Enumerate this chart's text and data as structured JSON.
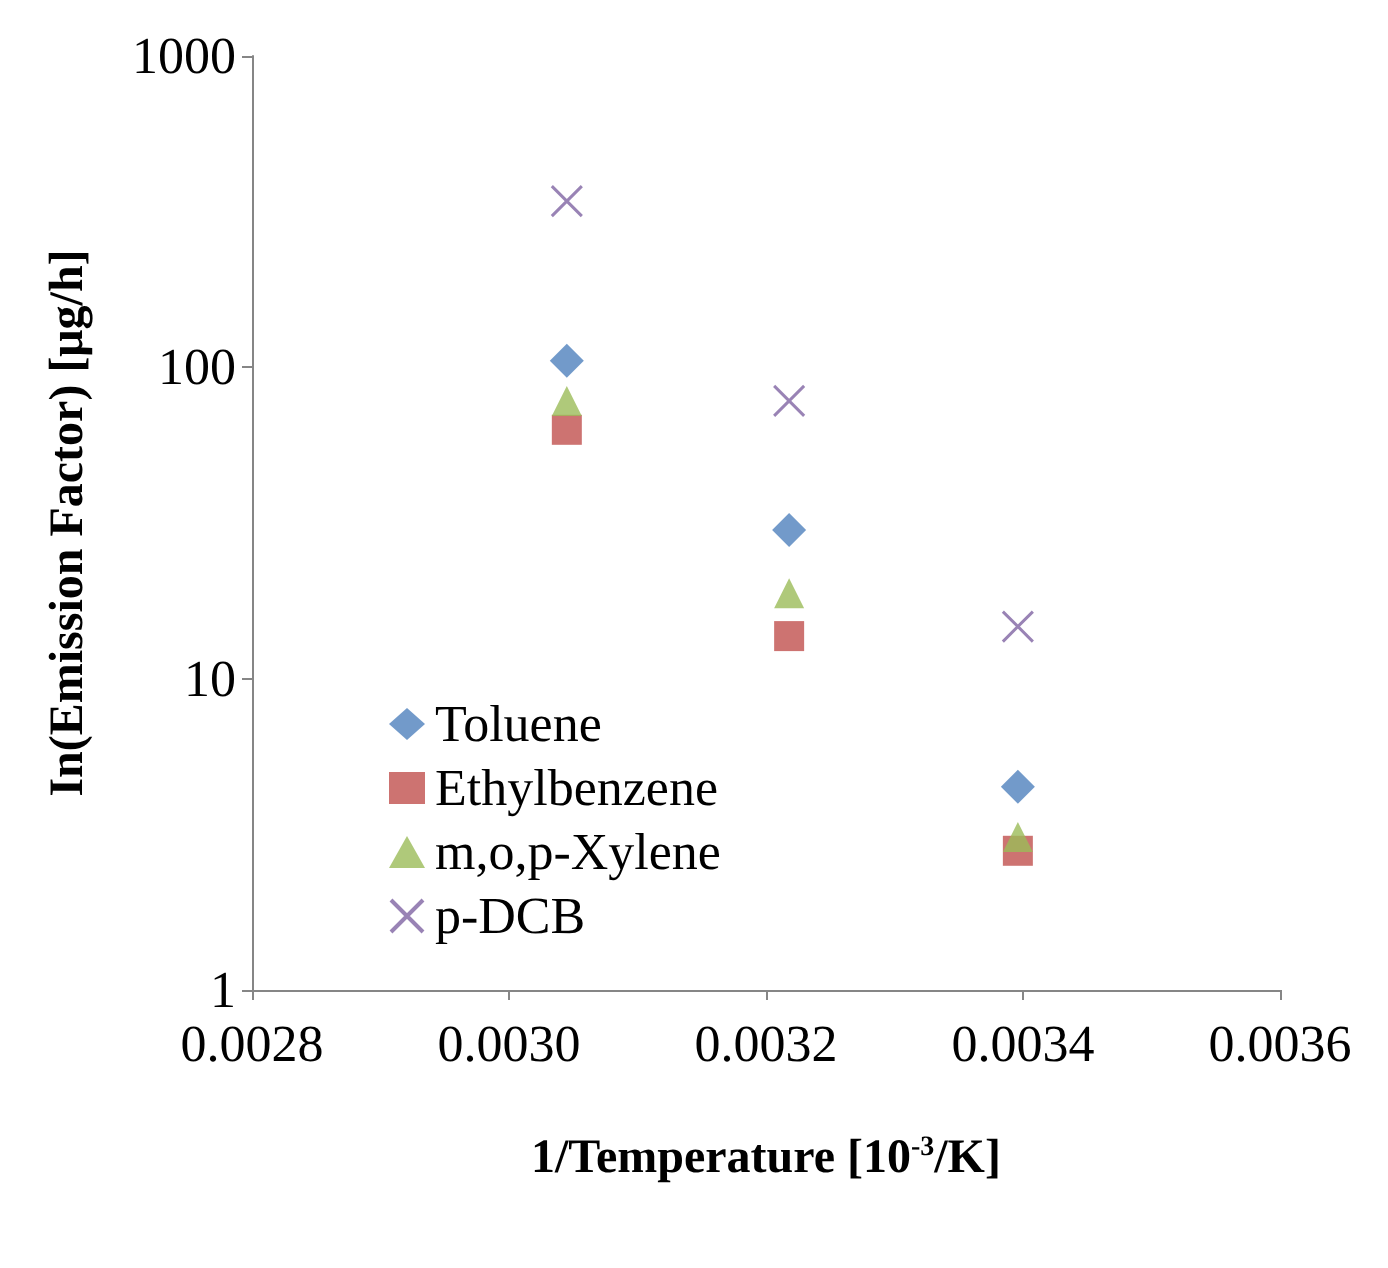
{
  "chart_data": {
    "type": "scatter",
    "xlabel": "1/Temperature [10$^{-3}$/K]",
    "ylabel": "In(Emission Factor) [μg/h]",
    "x": [
      0.003045,
      0.003218,
      0.003396
    ],
    "series": [
      {
        "name": "Toluene",
        "color": "#4f81bd",
        "marker": "diamond",
        "values": [
          105,
          30,
          4.5
        ]
      },
      {
        "name": "Ethylbenzene",
        "color": "#c0504d",
        "marker": "square",
        "values": [
          63,
          13.7,
          2.8
        ]
      },
      {
        "name": "m,o,p-Xylene",
        "color": "#9bbb59",
        "marker": "triangle",
        "values": [
          78,
          18.8,
          3.1
        ]
      },
      {
        "name": "p-DCB",
        "color": "#8064a2",
        "marker": "cross",
        "values": [
          342,
          78,
          14.7
        ]
      }
    ],
    "log": "y",
    "xlim": [
      0.0028,
      0.0036
    ],
    "xticks": [
      {
        "value": 0.0028,
        "label": "0.0028"
      },
      {
        "value": 0.003,
        "label": "0.0030"
      },
      {
        "value": 0.0032,
        "label": "0.0032"
      },
      {
        "value": 0.0034,
        "label": "0.0034"
      },
      {
        "value": 0.0036,
        "label": "0.0036"
      }
    ],
    "ylim": [
      1,
      1000
    ],
    "yticks": [
      1,
      10,
      100,
      1000
    ],
    "grid": false,
    "legend": "bottom left"
  }
}
